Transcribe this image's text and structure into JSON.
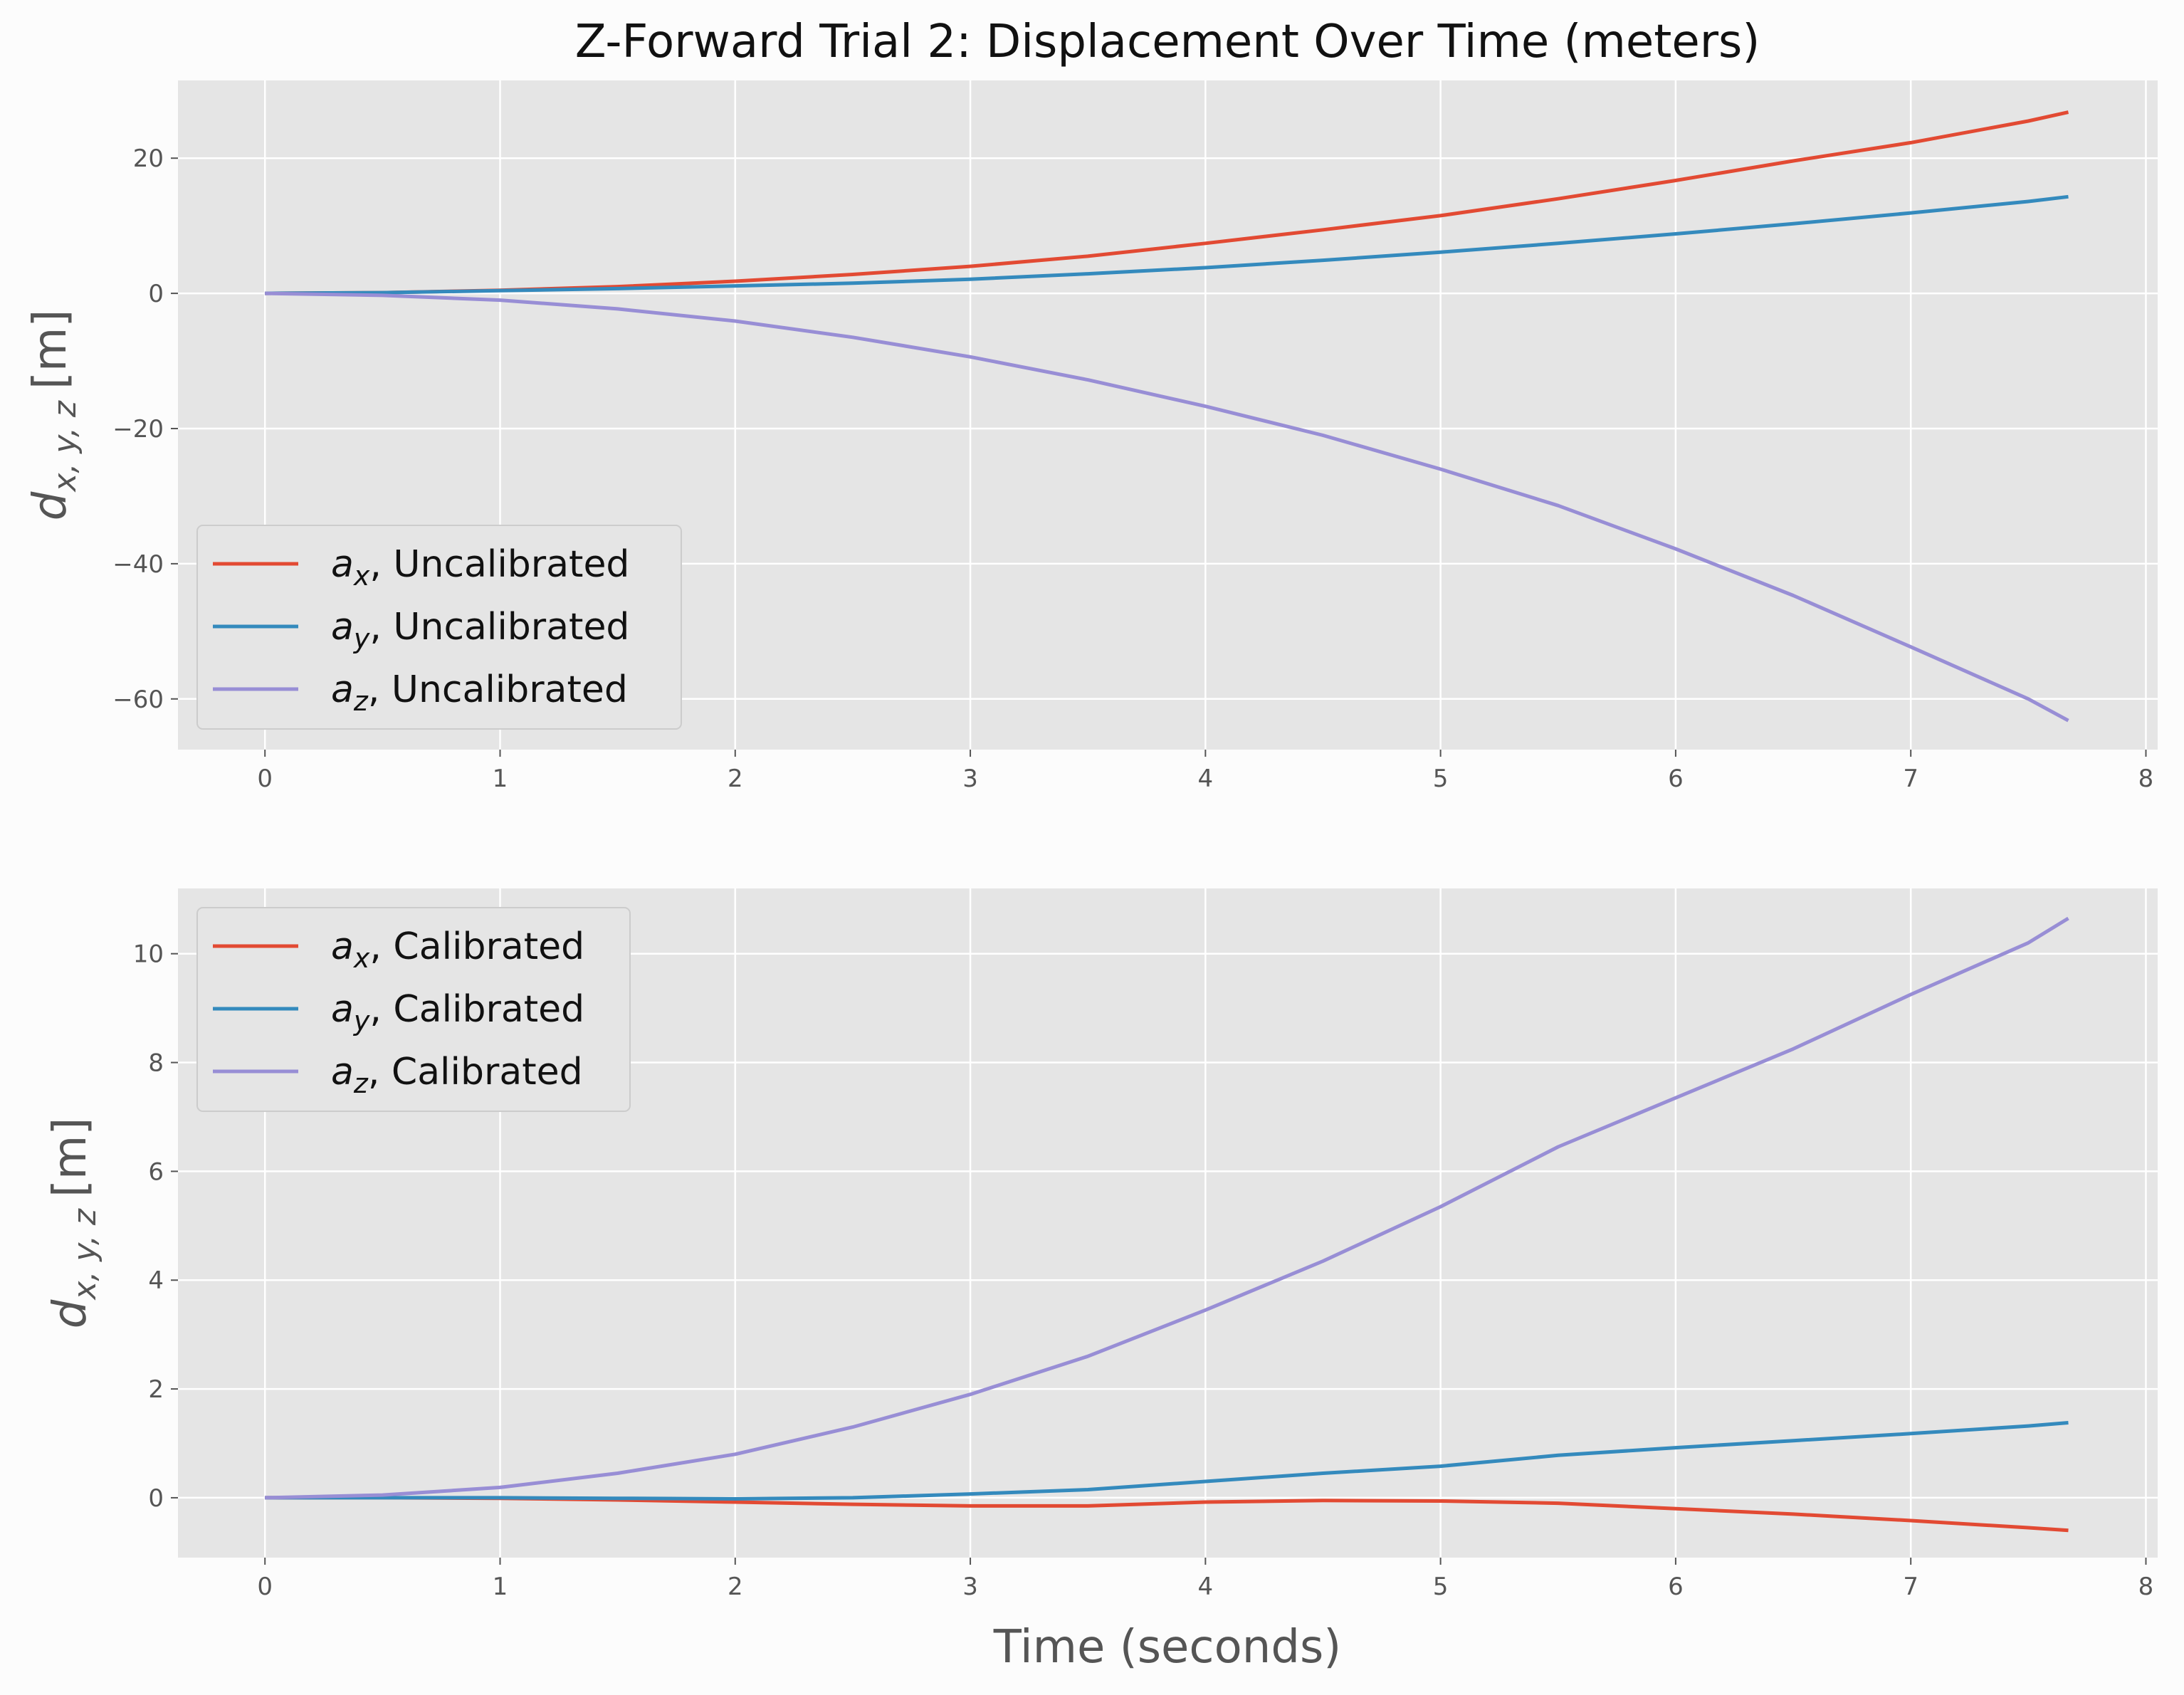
{
  "chart_data": {
    "type": "line",
    "title": "Z-Forward Trial 2: Displacement Over Time (meters)",
    "xlabel": "Time (seconds)",
    "colors": {
      "x": "#e24a33",
      "y": "#348abd",
      "z": "#988ed5"
    },
    "panels": [
      {
        "ylabel_main": "d",
        "ylabel_sub": "x, y, z",
        "ylabel_unit": "[m]",
        "xlim": [
          -0.37,
          8.05
        ],
        "ylim": [
          -67.5,
          31.5
        ],
        "xticks": [
          0,
          1,
          2,
          3,
          4,
          5,
          6,
          7,
          8
        ],
        "yticks": [
          -60,
          -40,
          -20,
          0,
          20
        ],
        "grid": true,
        "legend_position": "lower-left",
        "x": [
          0,
          0.5,
          1,
          1.5,
          2,
          2.5,
          3,
          3.5,
          4,
          4.5,
          5,
          5.5,
          6,
          6.5,
          7,
          7.5,
          7.67
        ],
        "series": [
          {
            "name_var": "a",
            "name_sub": "x",
            "name_suffix": ", Uncalibrated",
            "color_key": "x",
            "values": [
              0,
              0.1,
              0.45,
              1.0,
              1.8,
              2.8,
              4.0,
              5.5,
              7.4,
              9.4,
              11.5,
              14.0,
              16.7,
              19.6,
              22.3,
              25.5,
              26.8
            ]
          },
          {
            "name_var": "a",
            "name_sub": "y",
            "name_suffix": ", Uncalibrated",
            "color_key": "y",
            "values": [
              0,
              0.1,
              0.4,
              0.7,
              1.1,
              1.5,
              2.1,
              2.9,
              3.8,
              4.9,
              6.1,
              7.4,
              8.8,
              10.3,
              11.9,
              13.6,
              14.3
            ]
          },
          {
            "name_var": "a",
            "name_sub": "z",
            "name_suffix": ", Uncalibrated",
            "color_key": "z",
            "values": [
              0,
              -0.3,
              -1.0,
              -2.3,
              -4.1,
              -6.5,
              -9.4,
              -12.8,
              -16.7,
              -21.0,
              -26.0,
              -31.4,
              -37.8,
              -44.7,
              -52.3,
              -60.0,
              -63.2
            ]
          }
        ]
      },
      {
        "ylabel_main": "d",
        "ylabel_sub": "x, y, z",
        "ylabel_unit": "[m]",
        "xlim": [
          -0.37,
          8.05
        ],
        "ylim": [
          -1.1,
          11.2
        ],
        "xticks": [
          0,
          1,
          2,
          3,
          4,
          5,
          6,
          7,
          8
        ],
        "yticks": [
          0,
          2,
          4,
          6,
          8,
          10
        ],
        "grid": true,
        "legend_position": "upper-left",
        "x": [
          0,
          0.5,
          1,
          1.5,
          2,
          2.5,
          3,
          3.5,
          4,
          4.5,
          5,
          5.5,
          6,
          6.5,
          7,
          7.5,
          7.67
        ],
        "series": [
          {
            "name_var": "a",
            "name_sub": "x",
            "name_suffix": ", Calibrated",
            "color_key": "x",
            "values": [
              0,
              0,
              -0.01,
              -0.04,
              -0.08,
              -0.12,
              -0.15,
              -0.15,
              -0.08,
              -0.05,
              -0.06,
              -0.1,
              -0.2,
              -0.3,
              -0.42,
              -0.55,
              -0.6
            ]
          },
          {
            "name_var": "a",
            "name_sub": "y",
            "name_suffix": ", Calibrated",
            "color_key": "y",
            "values": [
              0,
              0,
              0,
              -0.01,
              -0.02,
              0.0,
              0.07,
              0.15,
              0.3,
              0.45,
              0.58,
              0.78,
              0.92,
              1.05,
              1.18,
              1.32,
              1.38
            ]
          },
          {
            "name_var": "a",
            "name_sub": "z",
            "name_suffix": ", Calibrated",
            "color_key": "z",
            "values": [
              0,
              0.05,
              0.19,
              0.45,
              0.8,
              1.3,
              1.9,
              2.6,
              3.45,
              4.35,
              5.35,
              6.45,
              7.35,
              8.25,
              9.25,
              10.2,
              10.65
            ]
          }
        ]
      }
    ]
  }
}
